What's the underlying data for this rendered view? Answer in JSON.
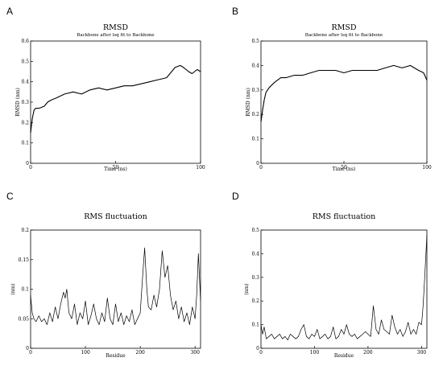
{
  "panels": [
    {
      "letter": "A"
    },
    {
      "letter": "B"
    },
    {
      "letter": "C"
    },
    {
      "letter": "D"
    }
  ],
  "chart_data": [
    {
      "type": "line",
      "title": "RMSD",
      "subtitle": "Backbone after lsq fit to Backbone",
      "xlabel": "Time (ns)",
      "ylabel": "RMSD (nm)",
      "xlim": [
        0,
        100
      ],
      "ylim": [
        0,
        0.6
      ],
      "xticks": [
        0,
        50,
        100
      ],
      "yticks": [
        0,
        0.1,
        0.2,
        0.3,
        0.4,
        0.5,
        0.6
      ],
      "grid": false,
      "series": [
        {
          "color": "#000000",
          "x": [
            0,
            1,
            2,
            3,
            5,
            8,
            10,
            12,
            15,
            20,
            25,
            30,
            35,
            40,
            45,
            50,
            55,
            60,
            65,
            70,
            75,
            80,
            83,
            85,
            88,
            90,
            93,
            95,
            98,
            100
          ],
          "y": [
            0.15,
            0.22,
            0.26,
            0.27,
            0.27,
            0.28,
            0.3,
            0.31,
            0.32,
            0.34,
            0.35,
            0.34,
            0.36,
            0.37,
            0.36,
            0.37,
            0.38,
            0.38,
            0.39,
            0.4,
            0.41,
            0.42,
            0.45,
            0.47,
            0.48,
            0.47,
            0.45,
            0.44,
            0.46,
            0.45
          ]
        }
      ]
    },
    {
      "type": "line",
      "title": "RMSD",
      "subtitle": "Backbone after lsq fit to Backbone",
      "xlabel": "Time (ns)",
      "ylabel": "RMSD (nm)",
      "xlim": [
        0,
        100
      ],
      "ylim": [
        0,
        0.5
      ],
      "xticks": [
        0,
        50,
        100
      ],
      "yticks": [
        0,
        0.1,
        0.2,
        0.3,
        0.4,
        0.5
      ],
      "grid": false,
      "series": [
        {
          "color": "#000000",
          "x": [
            0,
            1,
            2,
            3,
            5,
            8,
            10,
            12,
            15,
            20,
            25,
            30,
            35,
            40,
            45,
            50,
            55,
            60,
            65,
            70,
            75,
            80,
            85,
            90,
            95,
            98,
            100
          ],
          "y": [
            0.17,
            0.22,
            0.26,
            0.29,
            0.31,
            0.33,
            0.34,
            0.35,
            0.35,
            0.36,
            0.36,
            0.37,
            0.38,
            0.38,
            0.38,
            0.37,
            0.38,
            0.38,
            0.38,
            0.38,
            0.39,
            0.4,
            0.39,
            0.4,
            0.38,
            0.37,
            0.34
          ]
        }
      ]
    },
    {
      "type": "line",
      "title": "RMS fluctuation",
      "xlabel": "Residue",
      "ylabel": "(nm)",
      "xlim": [
        0,
        310
      ],
      "ylim": [
        0,
        0.2
      ],
      "xticks": [
        0,
        100,
        200,
        300
      ],
      "yticks": [
        0,
        0.05,
        0.1,
        0.15,
        0.2
      ],
      "grid": false,
      "series": [
        {
          "color": "#000000",
          "x": [
            0,
            3,
            6,
            10,
            15,
            20,
            25,
            30,
            35,
            40,
            45,
            50,
            55,
            60,
            63,
            66,
            70,
            75,
            80,
            85,
            90,
            95,
            100,
            105,
            110,
            115,
            120,
            125,
            130,
            135,
            140,
            145,
            150,
            155,
            160,
            165,
            170,
            175,
            180,
            185,
            190,
            195,
            200,
            205,
            208,
            212,
            215,
            220,
            225,
            230,
            235,
            240,
            245,
            250,
            255,
            260,
            265,
            270,
            275,
            280,
            285,
            290,
            295,
            300,
            303,
            306,
            310
          ],
          "y": [
            0.09,
            0.06,
            0.05,
            0.045,
            0.055,
            0.045,
            0.05,
            0.04,
            0.06,
            0.045,
            0.07,
            0.05,
            0.075,
            0.095,
            0.085,
            0.1,
            0.06,
            0.05,
            0.075,
            0.04,
            0.06,
            0.05,
            0.08,
            0.04,
            0.055,
            0.075,
            0.05,
            0.04,
            0.06,
            0.045,
            0.085,
            0.05,
            0.04,
            0.075,
            0.045,
            0.06,
            0.04,
            0.055,
            0.045,
            0.065,
            0.04,
            0.05,
            0.06,
            0.13,
            0.17,
            0.1,
            0.07,
            0.065,
            0.09,
            0.07,
            0.1,
            0.165,
            0.12,
            0.14,
            0.09,
            0.065,
            0.08,
            0.05,
            0.07,
            0.045,
            0.06,
            0.04,
            0.07,
            0.05,
            0.09,
            0.16,
            0.08
          ]
        }
      ]
    },
    {
      "type": "line",
      "title": "RMS fluctuation",
      "xlabel": "Residue",
      "ylabel": "(nm)",
      "xlim": [
        0,
        310
      ],
      "ylim": [
        0,
        0.5
      ],
      "xticks": [
        0,
        100,
        200,
        300
      ],
      "yticks": [
        0,
        0.1,
        0.2,
        0.3,
        0.4,
        0.5
      ],
      "grid": false,
      "series": [
        {
          "color": "#000000",
          "x": [
            0,
            3,
            6,
            10,
            15,
            20,
            25,
            30,
            35,
            40,
            45,
            50,
            55,
            60,
            65,
            70,
            75,
            80,
            85,
            90,
            95,
            100,
            105,
            110,
            115,
            120,
            125,
            130,
            135,
            140,
            145,
            150,
            155,
            160,
            165,
            170,
            175,
            180,
            185,
            190,
            195,
            200,
            205,
            210,
            215,
            220,
            225,
            230,
            235,
            240,
            245,
            250,
            255,
            260,
            265,
            270,
            275,
            280,
            285,
            290,
            295,
            300,
            303,
            306,
            310
          ],
          "y": [
            0.1,
            0.06,
            0.09,
            0.04,
            0.05,
            0.06,
            0.04,
            0.05,
            0.06,
            0.04,
            0.05,
            0.035,
            0.06,
            0.05,
            0.04,
            0.05,
            0.08,
            0.1,
            0.05,
            0.04,
            0.06,
            0.05,
            0.08,
            0.04,
            0.05,
            0.06,
            0.04,
            0.05,
            0.09,
            0.04,
            0.05,
            0.08,
            0.06,
            0.1,
            0.06,
            0.05,
            0.06,
            0.04,
            0.05,
            0.06,
            0.07,
            0.06,
            0.05,
            0.18,
            0.08,
            0.06,
            0.12,
            0.08,
            0.07,
            0.06,
            0.14,
            0.09,
            0.06,
            0.08,
            0.05,
            0.07,
            0.11,
            0.06,
            0.08,
            0.06,
            0.11,
            0.1,
            0.18,
            0.3,
            0.48
          ]
        }
      ]
    }
  ]
}
